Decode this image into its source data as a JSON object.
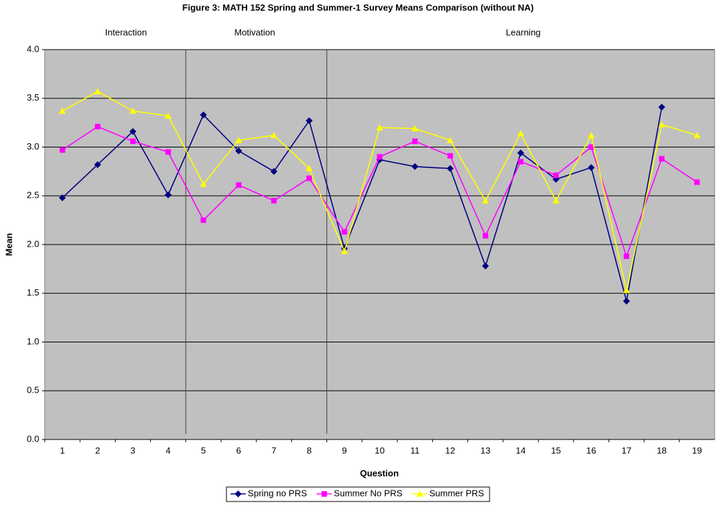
{
  "chart_data": {
    "type": "line",
    "title": "Figure 3: MATH 152 Spring and Summer-1 Survey Means Comparison (without NA)",
    "annotations": [
      "Interaction",
      "Motivation",
      "Learning"
    ],
    "xlabel": "Question",
    "ylabel": "Mean",
    "categories": [
      "1",
      "2",
      "3",
      "4",
      "5",
      "6",
      "7",
      "8",
      "9",
      "10",
      "11",
      "12",
      "13",
      "14",
      "15",
      "16",
      "17",
      "18",
      "19"
    ],
    "series": [
      {
        "name": "Spring no PRS",
        "color": "#000080",
        "marker": "diamond",
        "values": [
          2.48,
          2.82,
          3.16,
          2.51,
          3.33,
          2.96,
          2.75,
          3.27,
          1.96,
          2.87,
          2.8,
          2.78,
          1.78,
          2.94,
          2.67,
          2.79,
          1.42,
          3.41,
          null
        ]
      },
      {
        "name": "Summer No PRS",
        "color": "#ff00ff",
        "marker": "square",
        "values": [
          2.97,
          3.21,
          3.06,
          2.95,
          2.25,
          2.61,
          2.45,
          2.68,
          2.13,
          2.9,
          3.06,
          2.91,
          2.09,
          2.85,
          2.71,
          3.0,
          1.88,
          2.88,
          2.64
        ]
      },
      {
        "name": "Summer PRS",
        "color": "#ffff00",
        "marker": "triangle",
        "values": [
          3.37,
          3.57,
          3.37,
          3.32,
          2.62,
          3.07,
          3.12,
          2.78,
          1.93,
          3.2,
          3.19,
          3.07,
          2.45,
          3.14,
          2.45,
          3.12,
          1.53,
          3.23,
          3.12
        ]
      }
    ],
    "ylim": [
      0,
      4
    ],
    "yticks": [
      {
        "value": 0,
        "label": "0.0"
      },
      {
        "value": 0.5,
        "label": "0.5"
      },
      {
        "value": 1,
        "label": "1.0"
      },
      {
        "value": 1.5,
        "label": "1.5"
      },
      {
        "value": 2,
        "label": "2.0"
      },
      {
        "value": 2.5,
        "label": "2.5"
      },
      {
        "value": 3,
        "label": "3.0"
      },
      {
        "value": 3.5,
        "label": "3.5"
      },
      {
        "value": 4,
        "label": "4.0"
      }
    ],
    "grid": true,
    "plot_background": "#c0c0c0",
    "legend": "bottom"
  }
}
